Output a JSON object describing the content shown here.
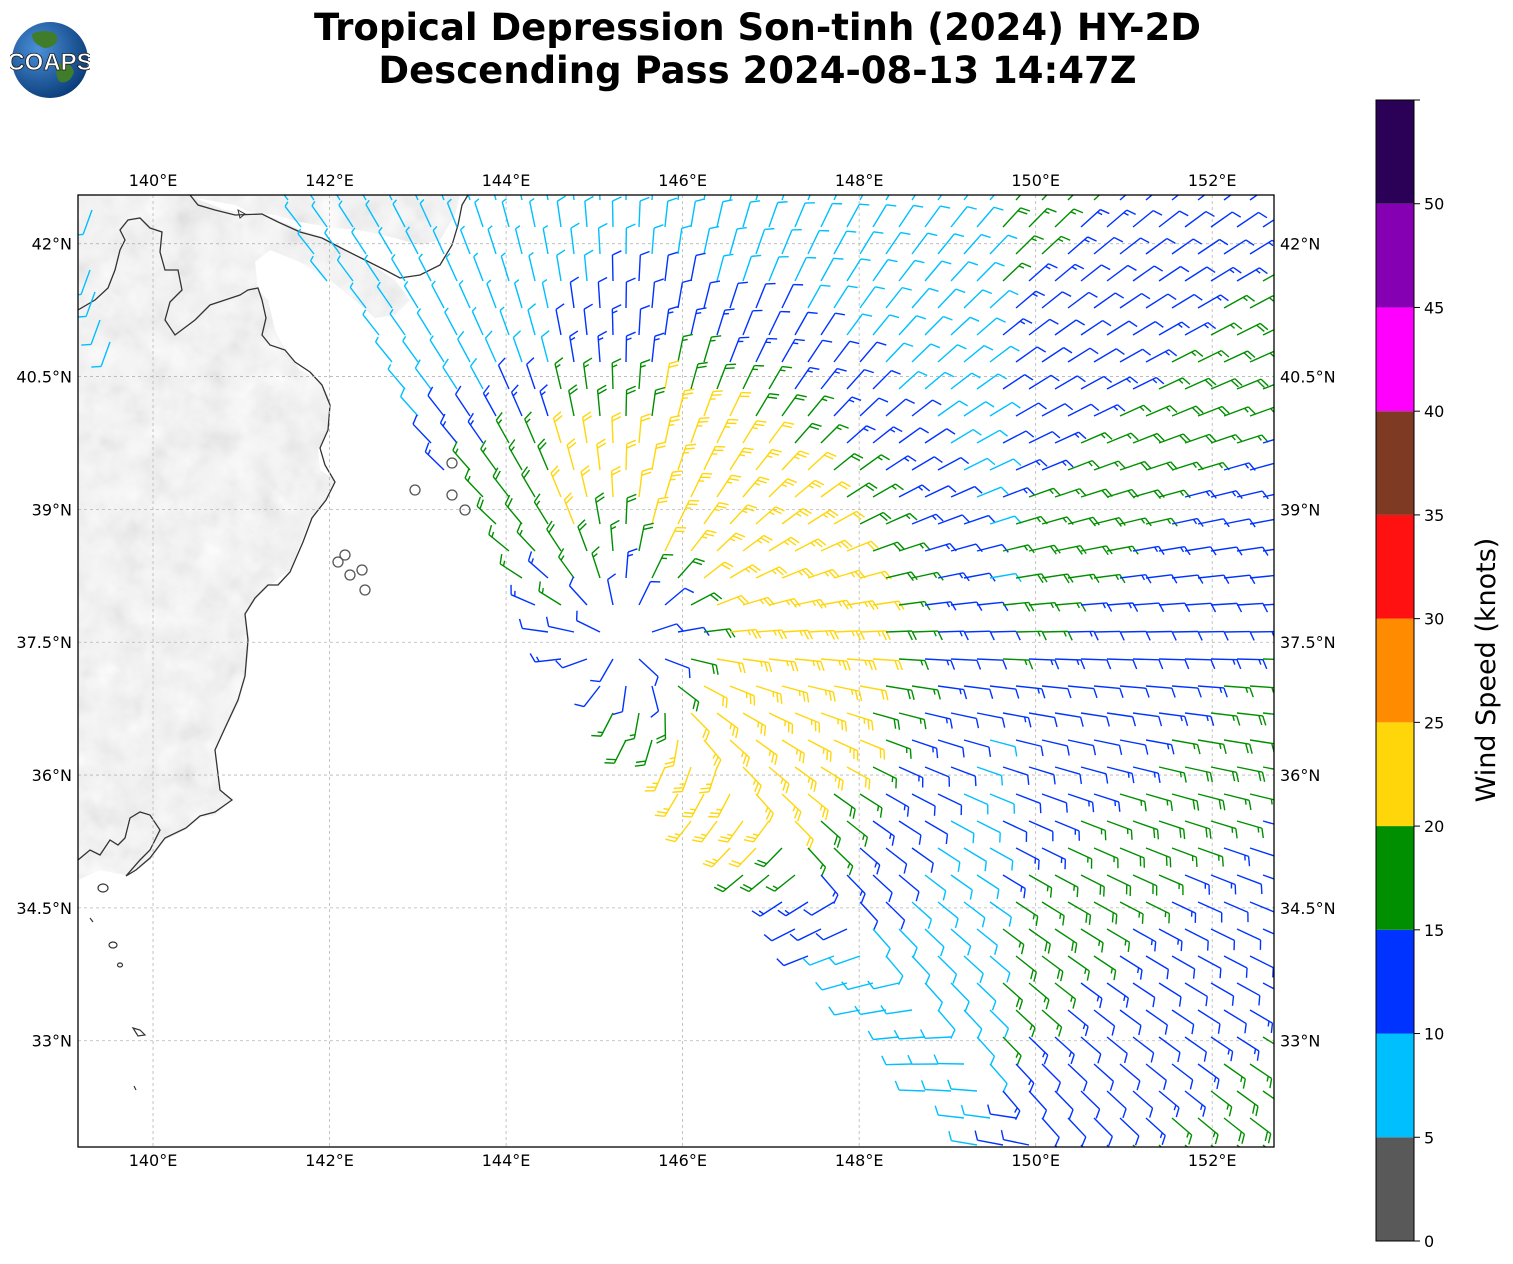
{
  "header": {
    "title_line1": "Tropical Depression Son-tinh (2024) HY-2D",
    "title_line2": "Descending Pass 2024-08-13 14:47Z",
    "logo_text": "COAPS"
  },
  "map": {
    "lon_range": [
      139.15,
      152.7
    ],
    "lat_range": [
      31.8,
      42.55
    ],
    "lon_ticks": [
      "140°E",
      "142°E",
      "144°E",
      "146°E",
      "148°E",
      "150°E",
      "152°E"
    ],
    "lon_tick_values": [
      140,
      142,
      144,
      146,
      148,
      150,
      152
    ],
    "lat_ticks": [
      "42°N",
      "40.5°N",
      "39°N",
      "37.5°N",
      "36°N",
      "34.5°N",
      "33°N"
    ],
    "lat_tick_values": [
      42,
      40.5,
      39,
      37.5,
      36,
      34.5,
      33
    ],
    "storm_center": {
      "lon": 145.3,
      "lat": 37.5
    }
  },
  "colorbar": {
    "label": "Wind Speed (knots)",
    "tick_labels": [
      "0",
      "5",
      "10",
      "15",
      "20",
      "25",
      "30",
      "35",
      "40",
      "45",
      "50"
    ],
    "bins": [
      {
        "min": 0,
        "max": 5,
        "color": "#595959"
      },
      {
        "min": 5,
        "max": 10,
        "color": "#00bfff"
      },
      {
        "min": 10,
        "max": 15,
        "color": "#0033ff"
      },
      {
        "min": 15,
        "max": 20,
        "color": "#008f00"
      },
      {
        "min": 20,
        "max": 25,
        "color": "#ffd60a"
      },
      {
        "min": 25,
        "max": 30,
        "color": "#ff8c00"
      },
      {
        "min": 30,
        "max": 35,
        "color": "#ff1111"
      },
      {
        "min": 35,
        "max": 40,
        "color": "#7f3a24"
      },
      {
        "min": 40,
        "max": 45,
        "color": "#ff00ff"
      },
      {
        "min": 45,
        "max": 50,
        "color": "#8600b3"
      },
      {
        "min": 50,
        "max": 55,
        "color": "#2b0057"
      }
    ]
  },
  "colors": {
    "land": "#f2f2f2",
    "coast": "#333333",
    "grid": "#b0b0b0"
  }
}
